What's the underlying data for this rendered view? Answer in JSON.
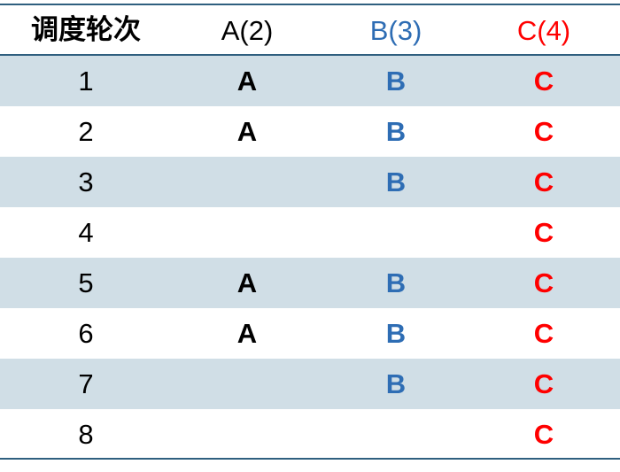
{
  "header": [
    "调度轮次",
    "A(2)",
    "B(3)",
    "C(4)"
  ],
  "colors": {
    "A": "#000000",
    "B": "#2e6db4",
    "C": "#ff0000",
    "row_shade": "#d0dee6"
  },
  "rows": [
    [
      "1",
      "A",
      "B",
      "C"
    ],
    [
      "2",
      "A",
      "B",
      "C"
    ],
    [
      "3",
      "",
      "B",
      "C"
    ],
    [
      "4",
      "",
      "",
      "C"
    ],
    [
      "5",
      "A",
      "B",
      "C"
    ],
    [
      "6",
      "A",
      "B",
      "C"
    ],
    [
      "7",
      "",
      "B",
      "C"
    ],
    [
      "8",
      "",
      "",
      "C"
    ]
  ]
}
